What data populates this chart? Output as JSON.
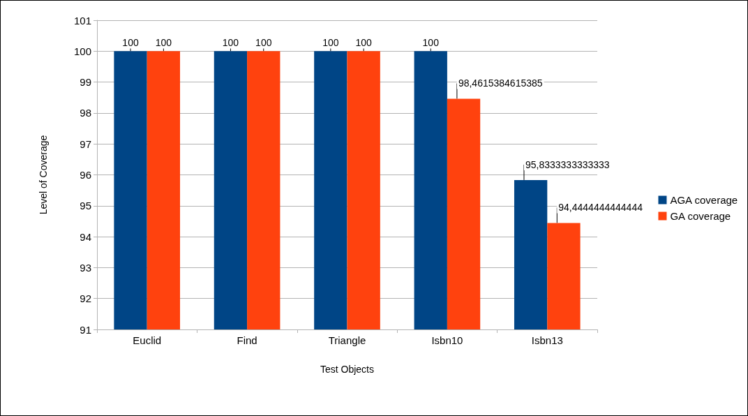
{
  "chart_data": {
    "type": "bar",
    "xlabel": "Test Objects",
    "ylabel": "Level of Coverage",
    "categories": [
      "Euclid",
      "Find",
      "Triangle",
      "Isbn10",
      "Isbn13"
    ],
    "series": [
      {
        "name": "AGA coverage",
        "color": "#004586",
        "values": [
          100,
          100,
          100,
          100,
          95.8333333333333
        ],
        "value_labels": [
          "100",
          "100",
          "100",
          "100",
          "95,8333333333333"
        ]
      },
      {
        "name": "GA coverage",
        "color": "#ff420e",
        "values": [
          100,
          100,
          100,
          98.4615384615385,
          94.4444444444444
        ],
        "value_labels": [
          "100",
          "100",
          "100",
          "98,4615384615385",
          "94,4444444444444"
        ]
      }
    ],
    "ylim": [
      91,
      101
    ],
    "yticks": [
      91,
      92,
      93,
      94,
      95,
      96,
      97,
      98,
      99,
      100,
      101
    ],
    "grid": "y",
    "legend": "right"
  }
}
